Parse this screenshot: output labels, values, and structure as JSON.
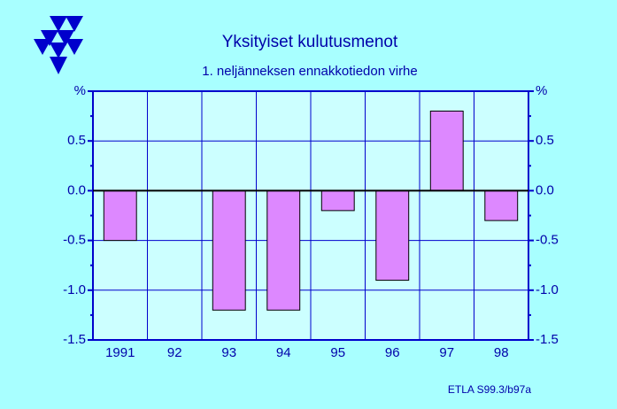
{
  "chart_data": {
    "type": "bar",
    "title": "Yksityiset  kulutusmenot",
    "subtitle": "1. neljänneksen ennakkotiedon virhe",
    "note": "ETLA S99.3/b97a",
    "categories": [
      "1991",
      "92",
      "93",
      "94",
      "95",
      "96",
      "97",
      "98"
    ],
    "values": [
      -0.5,
      0,
      -1.2,
      -1.2,
      -0.2,
      -0.9,
      0.8,
      -0.3
    ],
    "color": "#dd88ff",
    "ylim": [
      -1.5,
      1
    ],
    "yticks": [
      {
        "value": -1.5,
        "label": "-1.5"
      },
      {
        "value": -1,
        "label": "-1.0"
      },
      -0.5,
      {
        "value": 0,
        "label": "0.0"
      },
      0.5,
      {
        "value": 1,
        "label": "%"
      }
    ],
    "grid": true
  }
}
